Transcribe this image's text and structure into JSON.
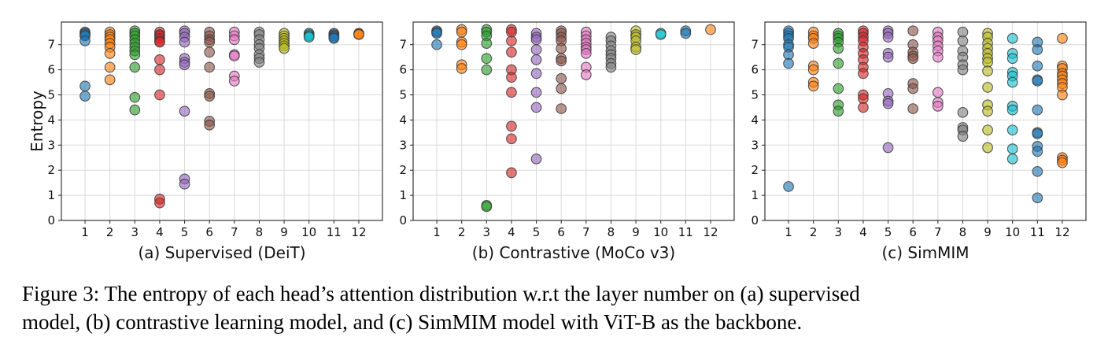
{
  "figure": {
    "ylabel": "Entropy",
    "caption_line1": "Figure 3: The entropy of each head’s attention distribution w.r.t the layer number on (a) supervised",
    "caption_line2": "model, (b) contrastive learning model, and (c) SimMIM model with ViT-B as the backbone.",
    "layer_colors": [
      "#1f77b4",
      "#ff7f0e",
      "#2ca02c",
      "#d62728",
      "#9467bd",
      "#8c564b",
      "#e377c2",
      "#7f7f7f",
      "#bcbd22",
      "#17becf",
      "#1f77b4",
      "#ff7f0e"
    ]
  },
  "chart_data": [
    {
      "type": "scatter",
      "title": "(a) Supervised (DeiT)",
      "xlabel": "(a) Supervised (DeiT)",
      "ylabel": "Entropy",
      "x_ticks": [
        1,
        2,
        3,
        4,
        5,
        6,
        7,
        8,
        9,
        10,
        11,
        12
      ],
      "y_ticks": [
        0,
        1,
        2,
        3,
        4,
        5,
        6,
        7
      ],
      "xlim": [
        0.05,
        12.95
      ],
      "ylim": [
        0,
        7.9
      ],
      "grid": true,
      "series": [
        {
          "x": 1,
          "values": [
            7.5,
            7.45,
            7.4,
            7.35,
            7.15,
            5.35,
            4.95
          ]
        },
        {
          "x": 2,
          "values": [
            7.5,
            7.4,
            7.3,
            7.2,
            7.05,
            6.9,
            6.65,
            6.1,
            5.6
          ]
        },
        {
          "x": 3,
          "values": [
            7.55,
            7.45,
            7.35,
            7.2,
            7.05,
            6.9,
            6.75,
            6.6,
            6.1,
            4.9,
            4.4
          ]
        },
        {
          "x": 4,
          "values": [
            7.5,
            7.4,
            7.35,
            7.25,
            7.15,
            7.1,
            6.4,
            6.0,
            5.0,
            0.85,
            0.7
          ]
        },
        {
          "x": 5,
          "values": [
            7.55,
            7.45,
            7.3,
            7.1,
            6.45,
            6.3,
            6.2,
            4.35,
            1.65,
            1.45
          ]
        },
        {
          "x": 6,
          "values": [
            7.5,
            7.35,
            7.2,
            7.1,
            6.7,
            6.1,
            5.05,
            4.95,
            3.95,
            3.8
          ]
        },
        {
          "x": 7,
          "values": [
            7.5,
            7.35,
            7.2,
            6.6,
            6.55,
            5.75,
            5.55
          ]
        },
        {
          "x": 8,
          "values": [
            7.5,
            7.4,
            7.2,
            7.0,
            6.85,
            6.6,
            6.45,
            6.3
          ]
        },
        {
          "x": 9,
          "values": [
            7.45,
            7.35,
            7.25,
            7.15,
            7.05,
            6.95,
            6.85
          ]
        },
        {
          "x": 10,
          "values": [
            7.45,
            7.4,
            7.35,
            7.3
          ]
        },
        {
          "x": 11,
          "values": [
            7.45,
            7.4,
            7.35,
            7.3,
            7.25
          ]
        },
        {
          "x": 12,
          "values": [
            7.45,
            7.42,
            7.4
          ]
        }
      ]
    },
    {
      "type": "scatter",
      "title": "(b) Contrastive (MoCo v3)",
      "xlabel": "(b) Contrastive (MoCo v3)",
      "ylabel": "",
      "x_ticks": [
        1,
        2,
        3,
        4,
        5,
        6,
        7,
        8,
        9,
        10,
        11,
        12
      ],
      "y_ticks": [
        0,
        1,
        2,
        3,
        4,
        5,
        6,
        7
      ],
      "xlim": [
        0.05,
        12.95
      ],
      "ylim": [
        0,
        7.9
      ],
      "grid": true,
      "series": [
        {
          "x": 1,
          "values": [
            7.55,
            7.5,
            7.45,
            7.0
          ]
        },
        {
          "x": 2,
          "values": [
            7.6,
            7.5,
            7.1,
            7.0,
            6.2,
            6.05
          ]
        },
        {
          "x": 3,
          "values": [
            7.6,
            7.5,
            7.35,
            7.05,
            6.45,
            6.0,
            0.6,
            0.55
          ]
        },
        {
          "x": 4,
          "values": [
            7.6,
            7.5,
            7.15,
            6.7,
            6.0,
            5.7,
            5.1,
            3.75,
            3.25,
            1.9
          ]
        },
        {
          "x": 5,
          "values": [
            7.45,
            7.3,
            7.2,
            6.8,
            6.4,
            5.85,
            5.1,
            4.5,
            2.45
          ]
        },
        {
          "x": 6,
          "values": [
            7.55,
            7.45,
            7.3,
            7.15,
            6.85,
            6.45,
            6.35,
            5.65,
            5.25,
            4.45
          ]
        },
        {
          "x": 7,
          "values": [
            7.5,
            7.35,
            7.2,
            7.05,
            6.9,
            6.8,
            6.65,
            6.1,
            5.8
          ]
        },
        {
          "x": 8,
          "values": [
            7.3,
            7.15,
            6.95,
            6.75,
            6.6,
            6.45,
            6.25,
            6.1
          ]
        },
        {
          "x": 9,
          "values": [
            7.55,
            7.4,
            7.3,
            7.15,
            6.9,
            6.8
          ]
        },
        {
          "x": 10,
          "values": [
            7.45,
            7.4
          ]
        },
        {
          "x": 11,
          "values": [
            7.55,
            7.45
          ]
        },
        {
          "x": 12,
          "values": [
            7.6
          ]
        }
      ]
    },
    {
      "type": "scatter",
      "title": "(c) SimMIM",
      "xlabel": "(c) SimMIM",
      "ylabel": "",
      "x_ticks": [
        1,
        2,
        3,
        4,
        5,
        6,
        7,
        8,
        9,
        10,
        11,
        12
      ],
      "y_ticks": [
        0,
        1,
        2,
        3,
        4,
        5,
        6,
        7
      ],
      "xlim": [
        0.05,
        12.95
      ],
      "ylim": [
        0,
        7.9
      ],
      "grid": true,
      "series": [
        {
          "x": 1,
          "values": [
            7.55,
            7.45,
            7.35,
            7.25,
            7.0,
            6.9,
            6.6,
            6.25,
            1.35
          ]
        },
        {
          "x": 2,
          "values": [
            7.5,
            7.35,
            7.25,
            7.05,
            6.15,
            6.0,
            5.5,
            5.35
          ]
        },
        {
          "x": 3,
          "values": [
            7.45,
            7.35,
            7.25,
            7.1,
            6.85,
            6.25,
            5.25,
            4.6,
            4.35
          ]
        },
        {
          "x": 4,
          "values": [
            7.55,
            7.45,
            7.3,
            7.15,
            6.9,
            6.65,
            6.4,
            6.1,
            5.85,
            5.0,
            4.85,
            4.5
          ]
        },
        {
          "x": 5,
          "values": [
            7.55,
            7.45,
            7.3,
            6.65,
            6.5,
            5.05,
            4.75,
            4.65,
            2.9
          ]
        },
        {
          "x": 6,
          "values": [
            7.55,
            7.0,
            6.7,
            6.55,
            6.45,
            5.45,
            5.25,
            4.45
          ]
        },
        {
          "x": 7,
          "values": [
            7.5,
            7.3,
            7.15,
            6.95,
            6.75,
            6.5,
            5.1,
            4.7,
            4.55
          ]
        },
        {
          "x": 8,
          "values": [
            7.5,
            7.15,
            6.75,
            6.5,
            6.2,
            6.0,
            4.3,
            3.7,
            3.6,
            3.35
          ]
        },
        {
          "x": 9,
          "values": [
            7.45,
            7.3,
            7.05,
            6.85,
            6.65,
            6.45,
            6.3,
            5.95,
            5.3,
            4.6,
            4.35,
            3.6,
            2.9
          ]
        },
        {
          "x": 10,
          "values": [
            7.25,
            6.65,
            6.45,
            5.9,
            5.75,
            5.5,
            4.55,
            4.4,
            3.6,
            2.85,
            2.45
          ]
        },
        {
          "x": 11,
          "values": [
            7.1,
            6.8,
            6.15,
            5.6,
            5.55,
            4.4,
            3.5,
            3.45,
            2.95,
            2.75,
            1.95,
            0.9
          ]
        },
        {
          "x": 12,
          "values": [
            7.25,
            6.15,
            6.05,
            5.85,
            5.75,
            5.6,
            5.45,
            5.3,
            5.0,
            2.5,
            2.4,
            2.3
          ]
        }
      ]
    }
  ]
}
